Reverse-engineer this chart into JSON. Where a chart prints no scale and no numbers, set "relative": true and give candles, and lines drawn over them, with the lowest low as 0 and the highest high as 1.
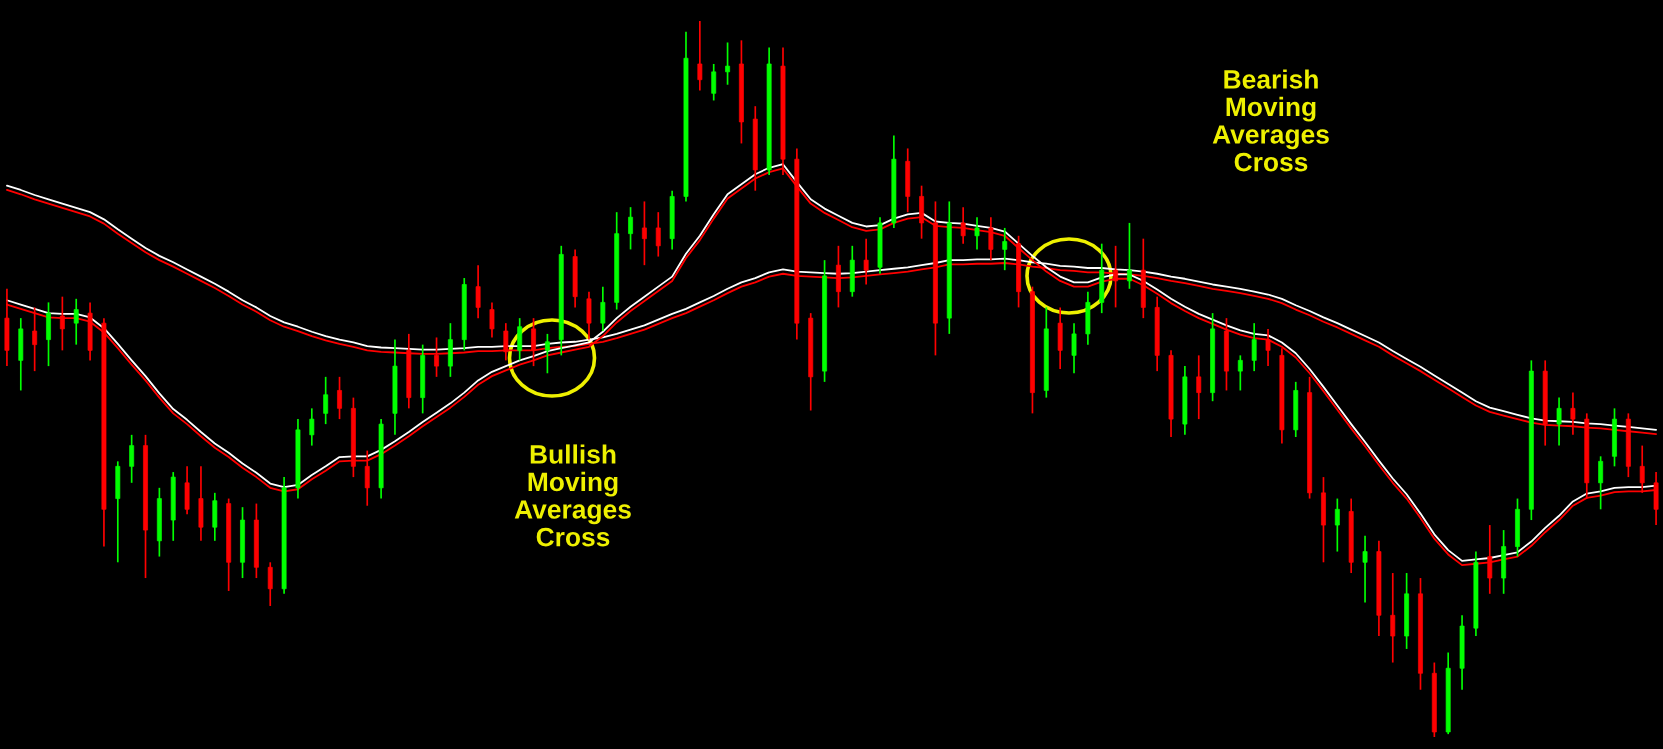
{
  "chart_data": {
    "type": "candlestick",
    "relative": true,
    "tick_labels": false,
    "categories": [
      null,
      null,
      null,
      null,
      null,
      null,
      null,
      null,
      null,
      null,
      null,
      null,
      null,
      null,
      null,
      null,
      null,
      null,
      null,
      null,
      null,
      null,
      null,
      null,
      null,
      null,
      null,
      null,
      null,
      null,
      null,
      null,
      null,
      null,
      null,
      null,
      null,
      null,
      null,
      null,
      null,
      null,
      null,
      null,
      null,
      null,
      null,
      null,
      null,
      null,
      null,
      null,
      null,
      null,
      null,
      null,
      null,
      null,
      null,
      null,
      null,
      null,
      null,
      null,
      null,
      null,
      null,
      null,
      null,
      null,
      null,
      null,
      null,
      null,
      null,
      null,
      null,
      null,
      null,
      null,
      null,
      null,
      null,
      null,
      null,
      null,
      null,
      null,
      null,
      null,
      null,
      null,
      null,
      null,
      null,
      null,
      null,
      null,
      null,
      null,
      null,
      null,
      null,
      null,
      null,
      null,
      null,
      null,
      null,
      null,
      null,
      null,
      null,
      null,
      null,
      null,
      null,
      null,
      null,
      null
    ],
    "ohlc": [
      [
        0.585,
        0.626,
        0.518,
        0.54
      ],
      [
        0.526,
        0.585,
        0.484,
        0.57
      ],
      [
        0.567,
        0.6,
        0.511,
        0.548
      ],
      [
        0.555,
        0.607,
        0.518,
        0.592
      ],
      [
        0.588,
        0.615,
        0.54,
        0.57
      ],
      [
        0.578,
        0.612,
        0.548,
        0.597
      ],
      [
        0.592,
        0.607,
        0.526,
        0.54
      ],
      [
        0.578,
        0.585,
        0.266,
        0.318
      ],
      [
        0.333,
        0.385,
        0.244,
        0.378
      ],
      [
        0.378,
        0.422,
        0.355,
        0.407
      ],
      [
        0.407,
        0.422,
        0.222,
        0.289
      ],
      [
        0.274,
        0.348,
        0.252,
        0.333
      ],
      [
        0.303,
        0.37,
        0.274,
        0.363
      ],
      [
        0.355,
        0.378,
        0.311,
        0.318
      ],
      [
        0.333,
        0.378,
        0.274,
        0.293
      ],
      [
        0.293,
        0.341,
        0.274,
        0.33
      ],
      [
        0.326,
        0.333,
        0.204,
        0.244
      ],
      [
        0.244,
        0.321,
        0.222,
        0.303
      ],
      [
        0.303,
        0.326,
        0.222,
        0.237
      ],
      [
        0.237,
        0.244,
        0.183,
        0.207
      ],
      [
        0.207,
        0.363,
        0.2,
        0.348
      ],
      [
        0.348,
        0.444,
        0.333,
        0.429
      ],
      [
        0.422,
        0.459,
        0.407,
        0.444
      ],
      [
        0.452,
        0.503,
        0.437,
        0.478
      ],
      [
        0.484,
        0.503,
        0.444,
        0.459
      ],
      [
        0.459,
        0.474,
        0.363,
        0.378
      ],
      [
        0.378,
        0.4,
        0.323,
        0.348
      ],
      [
        0.348,
        0.444,
        0.333,
        0.437
      ],
      [
        0.452,
        0.555,
        0.422,
        0.518
      ],
      [
        0.54,
        0.563,
        0.459,
        0.474
      ],
      [
        0.474,
        0.548,
        0.452,
        0.533
      ],
      [
        0.533,
        0.558,
        0.503,
        0.518
      ],
      [
        0.518,
        0.578,
        0.503,
        0.555
      ],
      [
        0.555,
        0.641,
        0.54,
        0.632
      ],
      [
        0.629,
        0.659,
        0.585,
        0.6
      ],
      [
        0.597,
        0.607,
        0.558,
        0.57
      ],
      [
        0.567,
        0.578,
        0.526,
        0.538
      ],
      [
        0.54,
        0.585,
        0.526,
        0.573
      ],
      [
        0.57,
        0.585,
        0.518,
        0.54
      ],
      [
        0.54,
        0.563,
        0.508,
        0.552
      ],
      [
        0.555,
        0.686,
        0.533,
        0.674
      ],
      [
        0.671,
        0.681,
        0.6,
        0.615
      ],
      [
        0.612,
        0.622,
        0.555,
        0.578
      ],
      [
        0.578,
        0.629,
        0.567,
        0.607
      ],
      [
        0.607,
        0.733,
        0.597,
        0.703
      ],
      [
        0.703,
        0.74,
        0.681,
        0.726
      ],
      [
        0.711,
        0.748,
        0.659,
        0.696
      ],
      [
        0.711,
        0.733,
        0.671,
        0.686
      ],
      [
        0.696,
        0.763,
        0.681,
        0.755
      ],
      [
        0.755,
        0.985,
        0.748,
        0.948
      ],
      [
        0.94,
        1.0,
        0.903,
        0.918
      ],
      [
        0.899,
        0.94,
        0.889,
        0.929
      ],
      [
        0.929,
        0.97,
        0.911,
        0.937
      ],
      [
        0.94,
        0.973,
        0.829,
        0.859
      ],
      [
        0.863,
        0.881,
        0.763,
        0.792
      ],
      [
        0.792,
        0.963,
        0.785,
        0.94
      ],
      [
        0.937,
        0.963,
        0.785,
        0.807
      ],
      [
        0.807,
        0.822,
        0.555,
        0.578
      ],
      [
        0.585,
        0.592,
        0.456,
        0.503
      ],
      [
        0.511,
        0.666,
        0.496,
        0.644
      ],
      [
        0.659,
        0.686,
        0.6,
        0.622
      ],
      [
        0.622,
        0.686,
        0.615,
        0.666
      ],
      [
        0.666,
        0.696,
        0.632,
        0.652
      ],
      [
        0.656,
        0.726,
        0.647,
        0.718
      ],
      [
        0.718,
        0.84,
        0.711,
        0.807
      ],
      [
        0.804,
        0.822,
        0.733,
        0.755
      ],
      [
        0.755,
        0.77,
        0.696,
        0.718
      ],
      [
        0.718,
        0.748,
        0.533,
        0.578
      ],
      [
        0.585,
        0.748,
        0.563,
        0.718
      ],
      [
        0.718,
        0.74,
        0.689,
        0.7
      ],
      [
        0.7,
        0.726,
        0.681,
        0.711
      ],
      [
        0.711,
        0.726,
        0.666,
        0.681
      ],
      [
        0.681,
        0.711,
        0.652,
        0.692
      ],
      [
        0.689,
        0.7,
        0.6,
        0.622
      ],
      [
        0.622,
        0.629,
        0.452,
        0.481
      ],
      [
        0.484,
        0.6,
        0.474,
        0.57
      ],
      [
        0.578,
        0.6,
        0.514,
        0.54
      ],
      [
        0.533,
        0.578,
        0.508,
        0.563
      ],
      [
        0.563,
        0.622,
        0.548,
        0.607
      ],
      [
        0.607,
        0.689,
        0.592,
        0.652
      ],
      [
        0.652,
        0.686,
        0.6,
        0.637
      ],
      [
        0.637,
        0.718,
        0.626,
        0.652
      ],
      [
        0.652,
        0.696,
        0.585,
        0.6
      ],
      [
        0.6,
        0.615,
        0.511,
        0.533
      ],
      [
        0.533,
        0.54,
        0.419,
        0.444
      ],
      [
        0.437,
        0.518,
        0.422,
        0.503
      ],
      [
        0.503,
        0.533,
        0.444,
        0.481
      ],
      [
        0.481,
        0.592,
        0.469,
        0.57
      ],
      [
        0.567,
        0.585,
        0.484,
        0.511
      ],
      [
        0.511,
        0.533,
        0.484,
        0.526
      ],
      [
        0.526,
        0.578,
        0.511,
        0.555
      ],
      [
        0.555,
        0.57,
        0.518,
        0.54
      ],
      [
        0.533,
        0.543,
        0.41,
        0.429
      ],
      [
        0.429,
        0.496,
        0.419,
        0.484
      ],
      [
        0.481,
        0.503,
        0.333,
        0.341
      ],
      [
        0.341,
        0.363,
        0.244,
        0.296
      ],
      [
        0.296,
        0.333,
        0.259,
        0.318
      ],
      [
        0.315,
        0.333,
        0.229,
        0.244
      ],
      [
        0.244,
        0.281,
        0.188,
        0.259
      ],
      [
        0.259,
        0.274,
        0.141,
        0.17
      ],
      [
        0.17,
        0.229,
        0.104,
        0.141
      ],
      [
        0.141,
        0.229,
        0.123,
        0.2
      ],
      [
        0.2,
        0.222,
        0.066,
        0.089
      ],
      [
        0.089,
        0.104,
        0.0,
        0.007
      ],
      [
        0.007,
        0.118,
        0.004,
        0.096
      ],
      [
        0.096,
        0.17,
        0.066,
        0.155
      ],
      [
        0.152,
        0.259,
        0.141,
        0.244
      ],
      [
        0.252,
        0.296,
        0.2,
        0.222
      ],
      [
        0.222,
        0.289,
        0.2,
        0.266
      ],
      [
        0.266,
        0.333,
        0.252,
        0.318
      ],
      [
        0.318,
        0.526,
        0.303,
        0.511
      ],
      [
        0.511,
        0.526,
        0.407,
        0.437
      ],
      [
        0.437,
        0.474,
        0.407,
        0.459
      ],
      [
        0.459,
        0.481,
        0.422,
        0.444
      ],
      [
        0.444,
        0.452,
        0.333,
        0.355
      ],
      [
        0.355,
        0.392,
        0.318,
        0.385
      ],
      [
        0.392,
        0.459,
        0.378,
        0.444
      ],
      [
        0.444,
        0.452,
        0.363,
        0.378
      ],
      [
        0.378,
        0.407,
        0.341,
        0.355
      ],
      [
        0.355,
        0.37,
        0.296,
        0.318
      ]
    ],
    "colors": [
      "#ff0000",
      "#00ff00",
      "#ff0000",
      "#00ff00",
      "#ff0000",
      "#00ff00",
      "#ff0000",
      "#ff0000",
      "#00ff00",
      "#00ff00",
      "#ff0000",
      "#00ff00",
      "#00ff00",
      "#ff0000",
      "#ff0000",
      "#00ff00",
      "#ff0000",
      "#00ff00",
      "#ff0000",
      "#ff0000",
      "#00ff00",
      "#00ff00",
      "#00ff00",
      "#00ff00",
      "#ff0000",
      "#ff0000",
      "#ff0000",
      "#00ff00",
      "#00ff00",
      "#ff0000",
      "#00ff00",
      "#ff0000",
      "#00ff00",
      "#00ff00",
      "#ff0000",
      "#ff0000",
      "#ff0000",
      "#00ff00",
      "#ff0000",
      "#00ff00",
      "#00ff00",
      "#ff0000",
      "#ff0000",
      "#00ff00",
      "#00ff00",
      "#00ff00",
      "#ff0000",
      "#ff0000",
      "#00ff00",
      "#00ff00",
      "#ff0000",
      "#00ff00",
      "#00ff00",
      "#ff0000",
      "#ff0000",
      "#00ff00",
      "#ff0000",
      "#ff0000",
      "#ff0000",
      "#00ff00",
      "#ff0000",
      "#00ff00",
      "#ff0000",
      "#00ff00",
      "#00ff00",
      "#ff0000",
      "#ff0000",
      "#ff0000",
      "#00ff00",
      "#ff0000",
      "#00ff00",
      "#ff0000",
      "#00ff00",
      "#ff0000",
      "#ff0000",
      "#00ff00",
      "#ff0000",
      "#00ff00",
      "#00ff00",
      "#00ff00",
      "#ff0000",
      "#00ff00",
      "#ff0000",
      "#ff0000",
      "#ff0000",
      "#00ff00",
      "#ff0000",
      "#00ff00",
      "#ff0000",
      "#00ff00",
      "#00ff00",
      "#ff0000",
      "#ff0000",
      "#00ff00",
      "#ff0000",
      "#ff0000",
      "#00ff00",
      "#ff0000",
      "#00ff00",
      "#ff0000",
      "#ff0000",
      "#00ff00",
      "#ff0000",
      "#ff0000",
      "#00ff00",
      "#00ff00",
      "#00ff00",
      "#ff0000",
      "#00ff00",
      "#00ff00",
      "#00ff00",
      "#ff0000",
      "#00ff00",
      "#ff0000",
      "#ff0000",
      "#00ff00",
      "#00ff00",
      "#ff0000",
      "#ff0000",
      "#ff0000"
    ],
    "series": [
      {
        "type": "line",
        "color": "#ffffff",
        "values": [
          0.77,
          0.764,
          0.757,
          0.751,
          0.745,
          0.739,
          0.733,
          0.723,
          0.709,
          0.696,
          0.683,
          0.672,
          0.663,
          0.653,
          0.643,
          0.633,
          0.622,
          0.61,
          0.6,
          0.588,
          0.579,
          0.573,
          0.566,
          0.56,
          0.555,
          0.551,
          0.546,
          0.544,
          0.543,
          0.542,
          0.541,
          0.541,
          0.542,
          0.543,
          0.545,
          0.545,
          0.546,
          0.546,
          0.546,
          0.549,
          0.551,
          0.552,
          0.555,
          0.558,
          0.563,
          0.569,
          0.575,
          0.583,
          0.591,
          0.598,
          0.607,
          0.616,
          0.626,
          0.635,
          0.641,
          0.649,
          0.653,
          0.65,
          0.649,
          0.648,
          0.647,
          0.648,
          0.65,
          0.652,
          0.654,
          0.656,
          0.659,
          0.662,
          0.666,
          0.666,
          0.667,
          0.667,
          0.668,
          0.666,
          0.663,
          0.661,
          0.658,
          0.657,
          0.655,
          0.655,
          0.653,
          0.652,
          0.65,
          0.647,
          0.643,
          0.64,
          0.636,
          0.632,
          0.629,
          0.626,
          0.622,
          0.618,
          0.612,
          0.603,
          0.595,
          0.586,
          0.578,
          0.569,
          0.56,
          0.551,
          0.539,
          0.528,
          0.517,
          0.505,
          0.493,
          0.481,
          0.469,
          0.46,
          0.455,
          0.45,
          0.445,
          0.442,
          0.441,
          0.44,
          0.438,
          0.437,
          0.435,
          0.433,
          0.431,
          0.429
        ]
      },
      {
        "type": "line",
        "color": "#ff0000",
        "values": [
          0.764,
          0.758,
          0.751,
          0.745,
          0.739,
          0.733,
          0.727,
          0.717,
          0.703,
          0.69,
          0.677,
          0.666,
          0.657,
          0.647,
          0.637,
          0.627,
          0.616,
          0.604,
          0.594,
          0.582,
          0.573,
          0.567,
          0.56,
          0.554,
          0.549,
          0.545,
          0.54,
          0.538,
          0.537,
          0.536,
          0.535,
          0.535,
          0.536,
          0.537,
          0.539,
          0.539,
          0.54,
          0.54,
          0.54,
          0.543,
          0.545,
          0.546,
          0.549,
          0.552,
          0.557,
          0.563,
          0.569,
          0.577,
          0.585,
          0.592,
          0.601,
          0.61,
          0.62,
          0.629,
          0.635,
          0.643,
          0.647,
          0.644,
          0.643,
          0.642,
          0.641,
          0.642,
          0.644,
          0.646,
          0.648,
          0.65,
          0.653,
          0.656,
          0.66,
          0.66,
          0.661,
          0.661,
          0.662,
          0.66,
          0.657,
          0.655,
          0.652,
          0.651,
          0.649,
          0.649,
          0.647,
          0.646,
          0.644,
          0.641,
          0.637,
          0.634,
          0.63,
          0.626,
          0.623,
          0.62,
          0.616,
          0.612,
          0.606,
          0.597,
          0.589,
          0.58,
          0.572,
          0.563,
          0.554,
          0.545,
          0.533,
          0.522,
          0.511,
          0.499,
          0.487,
          0.475,
          0.463,
          0.454,
          0.449,
          0.444,
          0.439,
          0.436,
          0.435,
          0.434,
          0.432,
          0.431,
          0.429,
          0.427,
          0.425,
          0.423
        ]
      },
      {
        "type": "line",
        "color": "#ffffff",
        "values": [
          0.61,
          0.604,
          0.598,
          0.592,
          0.591,
          0.591,
          0.586,
          0.571,
          0.549,
          0.526,
          0.504,
          0.48,
          0.458,
          0.443,
          0.426,
          0.41,
          0.397,
          0.382,
          0.369,
          0.354,
          0.349,
          0.352,
          0.366,
          0.378,
          0.391,
          0.392,
          0.392,
          0.401,
          0.413,
          0.426,
          0.44,
          0.453,
          0.466,
          0.481,
          0.498,
          0.51,
          0.518,
          0.526,
          0.532,
          0.539,
          0.543,
          0.547,
          0.551,
          0.566,
          0.585,
          0.601,
          0.615,
          0.629,
          0.643,
          0.675,
          0.7,
          0.73,
          0.758,
          0.772,
          0.786,
          0.795,
          0.8,
          0.775,
          0.751,
          0.738,
          0.728,
          0.718,
          0.713,
          0.715,
          0.724,
          0.73,
          0.732,
          0.72,
          0.718,
          0.717,
          0.714,
          0.711,
          0.706,
          0.689,
          0.672,
          0.656,
          0.643,
          0.635,
          0.635,
          0.642,
          0.646,
          0.646,
          0.637,
          0.625,
          0.612,
          0.601,
          0.591,
          0.583,
          0.575,
          0.568,
          0.563,
          0.561,
          0.551,
          0.536,
          0.514,
          0.489,
          0.463,
          0.437,
          0.412,
          0.386,
          0.361,
          0.339,
          0.312,
          0.283,
          0.261,
          0.246,
          0.248,
          0.25,
          0.254,
          0.258,
          0.273,
          0.292,
          0.309,
          0.329,
          0.34,
          0.343,
          0.348,
          0.349,
          0.349,
          0.351
        ]
      },
      {
        "type": "line",
        "color": "#ff0000",
        "values": [
          0.604,
          0.598,
          0.592,
          0.586,
          0.585,
          0.585,
          0.58,
          0.565,
          0.543,
          0.52,
          0.498,
          0.474,
          0.452,
          0.437,
          0.42,
          0.404,
          0.391,
          0.376,
          0.363,
          0.348,
          0.343,
          0.346,
          0.36,
          0.372,
          0.385,
          0.386,
          0.386,
          0.395,
          0.407,
          0.42,
          0.434,
          0.447,
          0.46,
          0.475,
          0.492,
          0.504,
          0.512,
          0.52,
          0.526,
          0.533,
          0.537,
          0.541,
          0.545,
          0.56,
          0.579,
          0.595,
          0.609,
          0.623,
          0.637,
          0.669,
          0.694,
          0.724,
          0.752,
          0.766,
          0.78,
          0.789,
          0.794,
          0.769,
          0.745,
          0.732,
          0.722,
          0.712,
          0.707,
          0.709,
          0.718,
          0.724,
          0.726,
          0.714,
          0.712,
          0.711,
          0.708,
          0.705,
          0.7,
          0.683,
          0.666,
          0.65,
          0.637,
          0.629,
          0.629,
          0.636,
          0.64,
          0.64,
          0.631,
          0.619,
          0.606,
          0.595,
          0.585,
          0.577,
          0.569,
          0.562,
          0.557,
          0.555,
          0.545,
          0.53,
          0.508,
          0.483,
          0.457,
          0.431,
          0.406,
          0.38,
          0.355,
          0.333,
          0.306,
          0.277,
          0.255,
          0.24,
          0.242,
          0.244,
          0.248,
          0.252,
          0.267,
          0.286,
          0.303,
          0.323,
          0.334,
          0.337,
          0.342,
          0.343,
          0.343,
          0.345
        ]
      }
    ],
    "annotations": [
      "Bullish Moving Averages Cross",
      "Bearish Moving Averages Cross"
    ]
  }
}
